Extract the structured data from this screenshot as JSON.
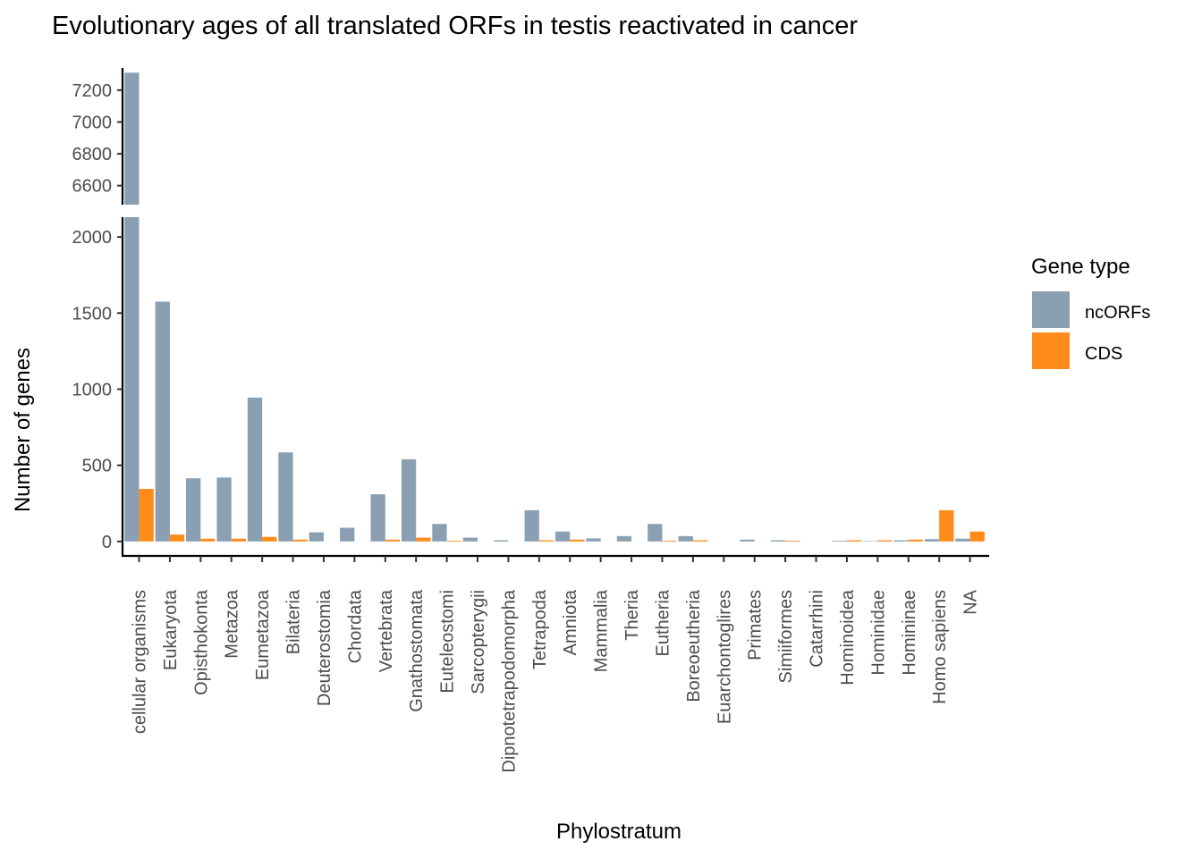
{
  "chart_data": {
    "type": "bar",
    "title": "Evolutionary ages of all translated ORFs in testis reactivated in cancer",
    "xlabel": "Phylostratum",
    "ylabel": "Number of genes",
    "categories": [
      "cellular organisms",
      "Eukaryota",
      "Opisthokonta",
      "Metazoa",
      "Eumetazoa",
      "Bilateria",
      "Deuterostomia",
      "Chordata",
      "Vertebrata",
      "Gnathostomata",
      "Euteleostomi",
      "Sarcopterygii",
      "Dipnotetrapodomorpha",
      "Tetrapoda",
      "Amniota",
      "Mammalia",
      "Theria",
      "Eutheria",
      "Boreoeutheria",
      "Euarchontoglires",
      "Primates",
      "Simiiformes",
      "Catarrhini",
      "Hominoidea",
      "Hominidae",
      "Homininae",
      "Homo sapiens",
      "NA"
    ],
    "series": [
      {
        "name": "ncORFs",
        "color": "#8aa0b2",
        "values": [
          7310,
          1575,
          415,
          420,
          945,
          585,
          60,
          90,
          310,
          540,
          115,
          25,
          8,
          205,
          65,
          20,
          35,
          115,
          35,
          0,
          12,
          8,
          0,
          5,
          3,
          8,
          15,
          18
        ]
      },
      {
        "name": "CDS",
        "color": "#ff8c1a",
        "values": [
          345,
          45,
          18,
          18,
          30,
          12,
          0,
          0,
          12,
          25,
          5,
          0,
          0,
          8,
          12,
          0,
          0,
          5,
          8,
          0,
          0,
          5,
          0,
          8,
          8,
          12,
          205,
          65
        ]
      }
    ],
    "y_breaks": {
      "upper": {
        "ylim": [
          6480,
          7340
        ],
        "ticks": [
          6600,
          6800,
          7000,
          7200
        ]
      },
      "lower": {
        "ylim": [
          -95,
          2130
        ],
        "ticks": [
          0,
          500,
          1000,
          1500,
          2000
        ]
      }
    },
    "legend": {
      "title": "Gene type",
      "position": "right"
    },
    "grid": false
  }
}
